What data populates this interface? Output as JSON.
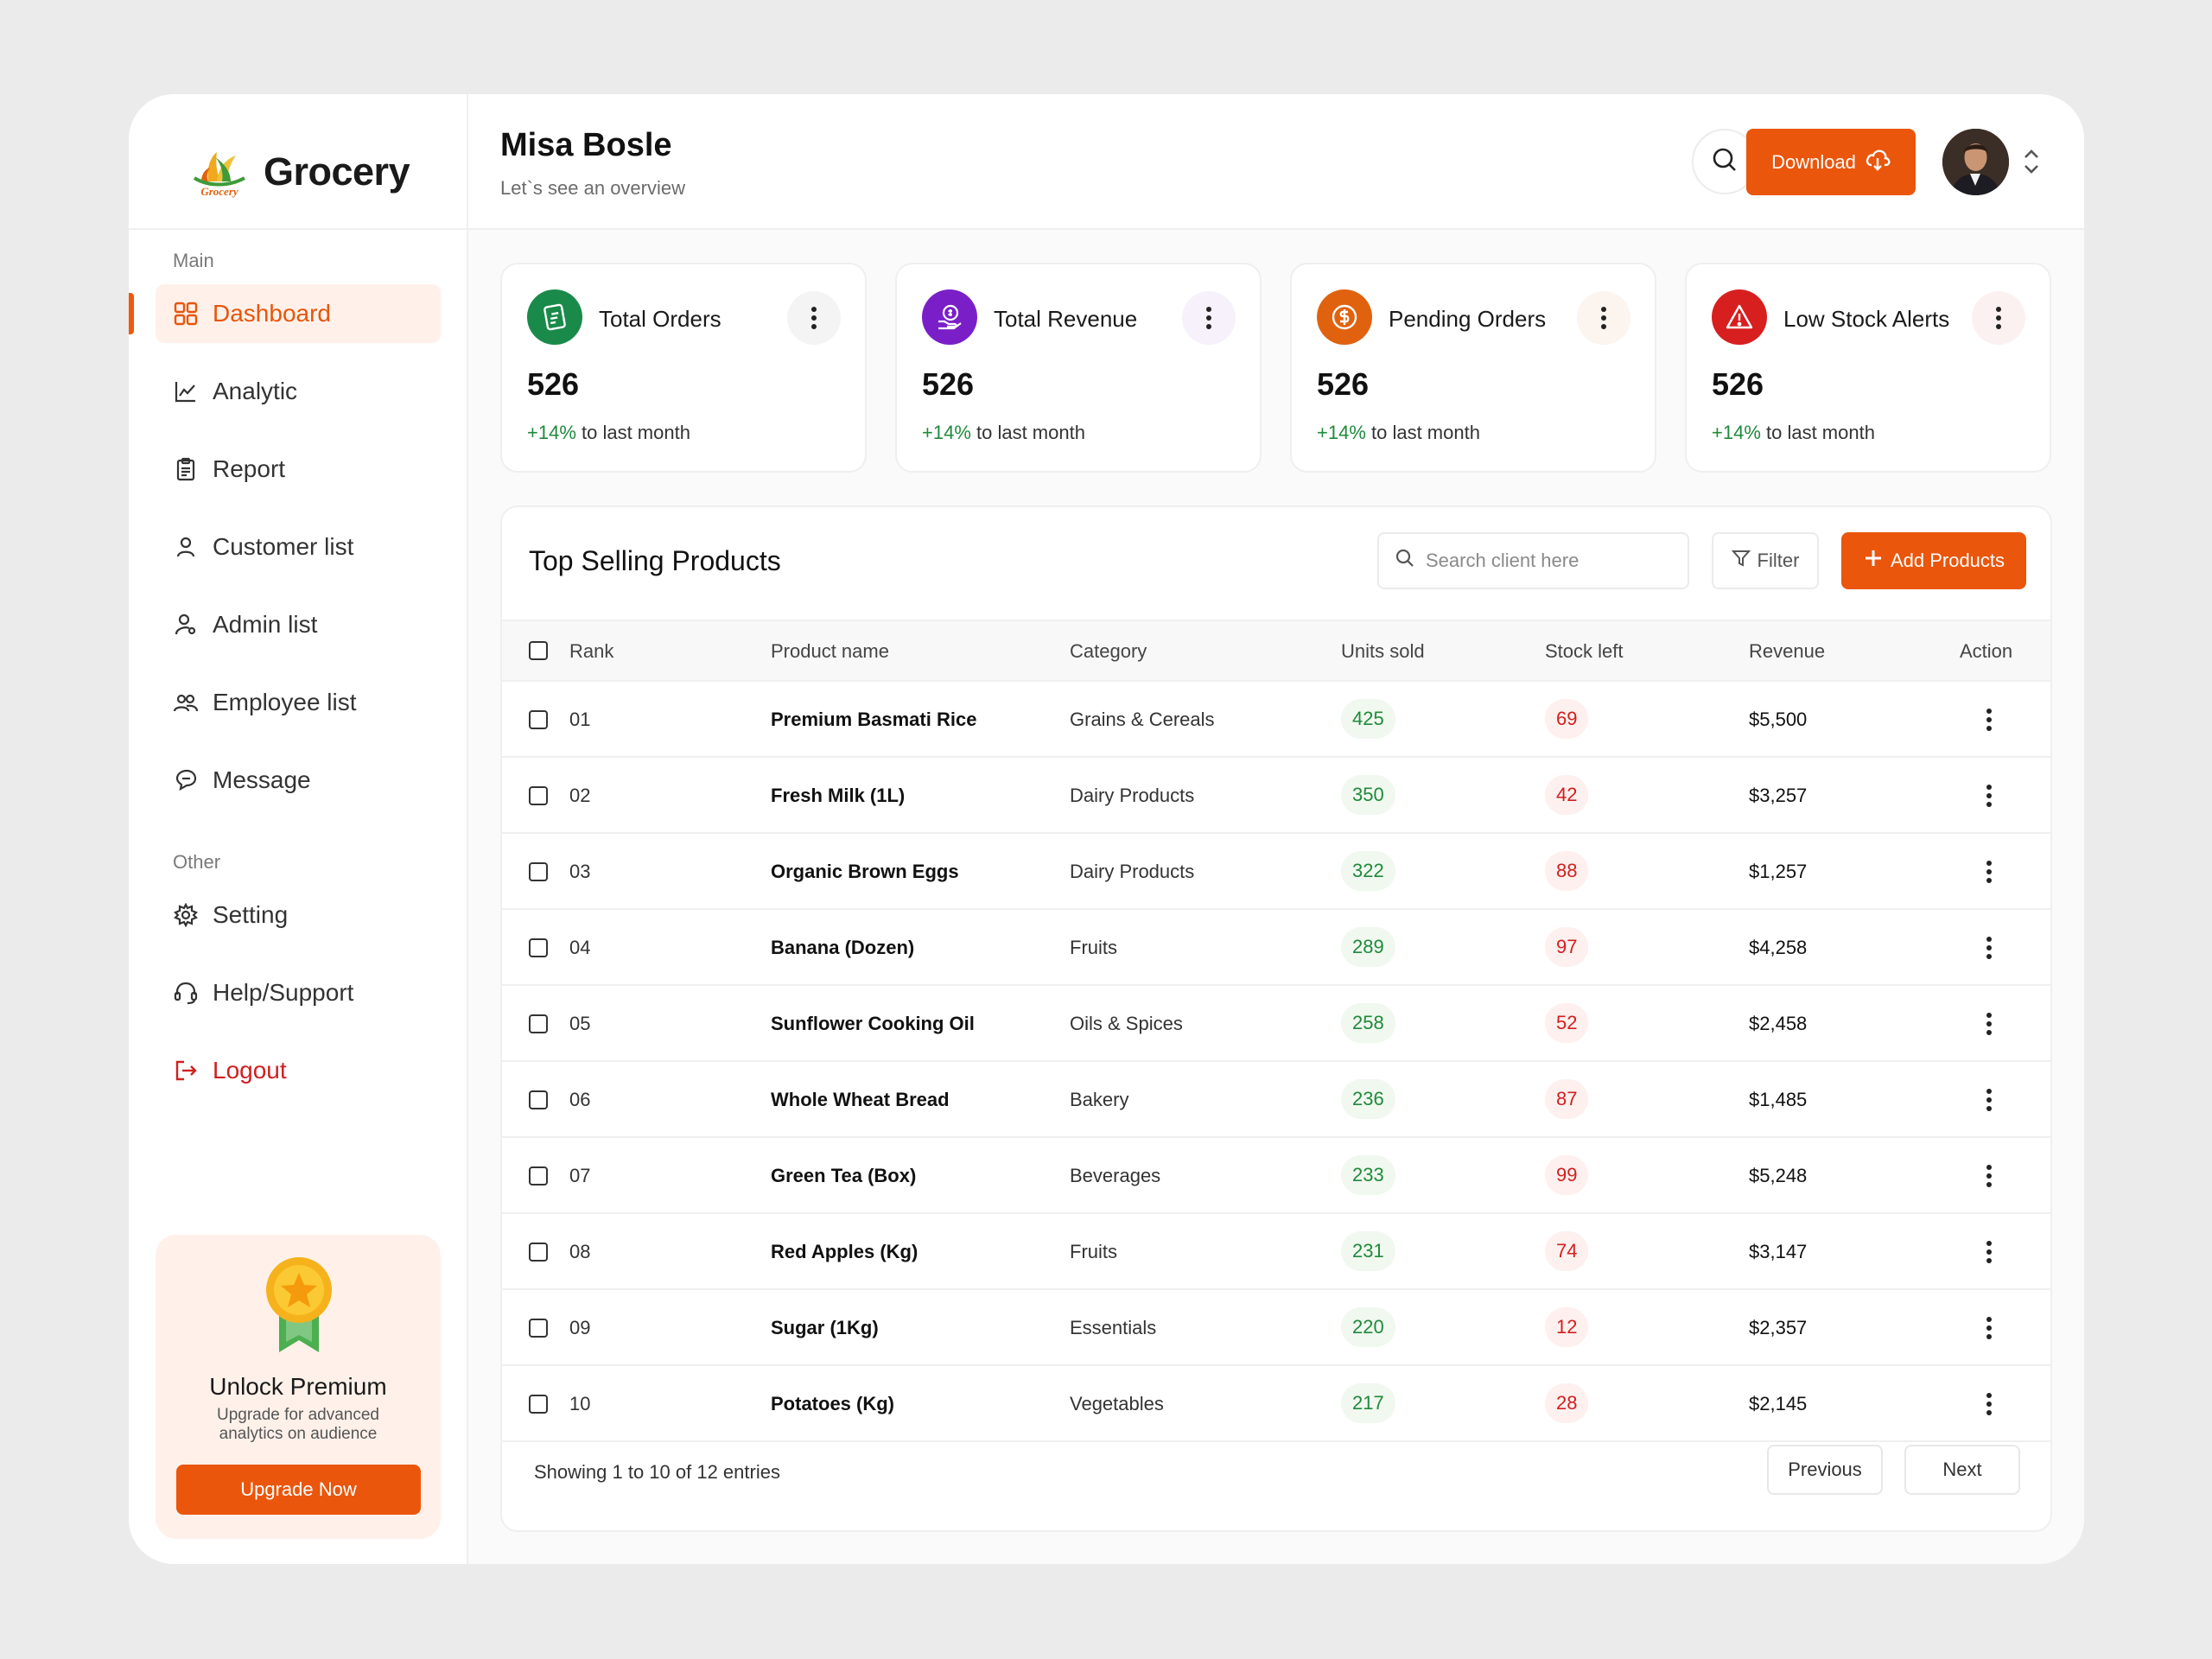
{
  "brand": {
    "name": "Grocery",
    "logo_text": "Grocery"
  },
  "sidebar": {
    "main_label": "Main",
    "other_label": "Other",
    "items": [
      {
        "label": "Dashboard",
        "icon": "grid-icon",
        "active": true
      },
      {
        "label": "Analytic",
        "icon": "chart-line-icon"
      },
      {
        "label": "Report",
        "icon": "clipboard-icon"
      },
      {
        "label": "Customer list",
        "icon": "user-icon"
      },
      {
        "label": "Admin list",
        "icon": "user-cog-icon"
      },
      {
        "label": "Employee list",
        "icon": "users-icon"
      },
      {
        "label": "Message",
        "icon": "chat-icon"
      }
    ],
    "other_items": [
      {
        "label": "Setting",
        "icon": "gear-icon"
      },
      {
        "label": "Help/Support",
        "icon": "headset-icon"
      },
      {
        "label": "Logout",
        "icon": "logout-icon"
      }
    ],
    "premium": {
      "title": "Unlock Premium",
      "description": "Upgrade for advanced analytics on audience",
      "button": "Upgrade Now"
    }
  },
  "header": {
    "title": "Misa Bosle",
    "subtitle": "Let`s see an overview",
    "download_label": "Download"
  },
  "stats": [
    {
      "title": "Total Orders",
      "value": "526",
      "change": "+14%",
      "change_suffix": " to last month",
      "color": "#1a8a4a",
      "icon": "orders-icon"
    },
    {
      "title": "Total Revenue",
      "value": "526",
      "change": "+14%",
      "change_suffix": " to last month",
      "color": "#7a1fc8",
      "icon": "revenue-icon"
    },
    {
      "title": "Pending Orders",
      "value": "526",
      "change": "+14%",
      "change_suffix": " to last month",
      "color": "#e0620f",
      "icon": "dollar-icon"
    },
    {
      "title": "Low Stock Alerts",
      "value": "526",
      "change": "+14%",
      "change_suffix": " to last month",
      "color": "#d71f1f",
      "icon": "warning-icon"
    }
  ],
  "table": {
    "title": "Top Selling Products",
    "search_placeholder": "Search client here",
    "filter_label": "Filter",
    "add_label": "Add Products",
    "columns": [
      "Rank",
      "Product name",
      "Category",
      "Units sold",
      "Stock left",
      "Revenue",
      "Action"
    ],
    "rows": [
      {
        "rank": "01",
        "name": "Premium Basmati Rice",
        "category": "Grains & Cereals",
        "units": "425",
        "stock": "69",
        "revenue": "$5,500"
      },
      {
        "rank": "02",
        "name": "Fresh Milk (1L)",
        "category": "Dairy Products",
        "units": "350",
        "stock": "42",
        "revenue": "$3,257"
      },
      {
        "rank": "03",
        "name": "Organic Brown Eggs",
        "category": "Dairy Products",
        "units": "322",
        "stock": "88",
        "revenue": "$1,257"
      },
      {
        "rank": "04",
        "name": "Banana (Dozen)",
        "category": "Fruits",
        "units": "289",
        "stock": "97",
        "revenue": "$4,258"
      },
      {
        "rank": "05",
        "name": "Sunflower Cooking Oil",
        "category": "Oils & Spices",
        "units": "258",
        "stock": "52",
        "revenue": "$2,458"
      },
      {
        "rank": "06",
        "name": "Whole Wheat Bread",
        "category": "Bakery",
        "units": "236",
        "stock": "87",
        "revenue": "$1,485"
      },
      {
        "rank": "07",
        "name": "Green Tea (Box)",
        "category": "Beverages",
        "units": "233",
        "stock": "99",
        "revenue": "$5,248"
      },
      {
        "rank": "08",
        "name": "Red Apples (Kg)",
        "category": "Fruits",
        "units": "231",
        "stock": "74",
        "revenue": "$3,147"
      },
      {
        "rank": "09",
        "name": "Sugar (1Kg)",
        "category": "Essentials",
        "units": "220",
        "stock": "12",
        "revenue": "$2,357"
      },
      {
        "rank": "10",
        "name": "Potatoes (Kg)",
        "category": "Vegetables",
        "units": "217",
        "stock": "28",
        "revenue": "$2,145"
      }
    ],
    "footer": "Showing 1 to 10 of 12 entries",
    "prev_label": "Previous",
    "next_label": "Next"
  },
  "colors": {
    "accent": "#ea560b",
    "accent_bg": "#fff1ea",
    "positive": "#1f8a3b",
    "negative": "#d11f1f"
  }
}
